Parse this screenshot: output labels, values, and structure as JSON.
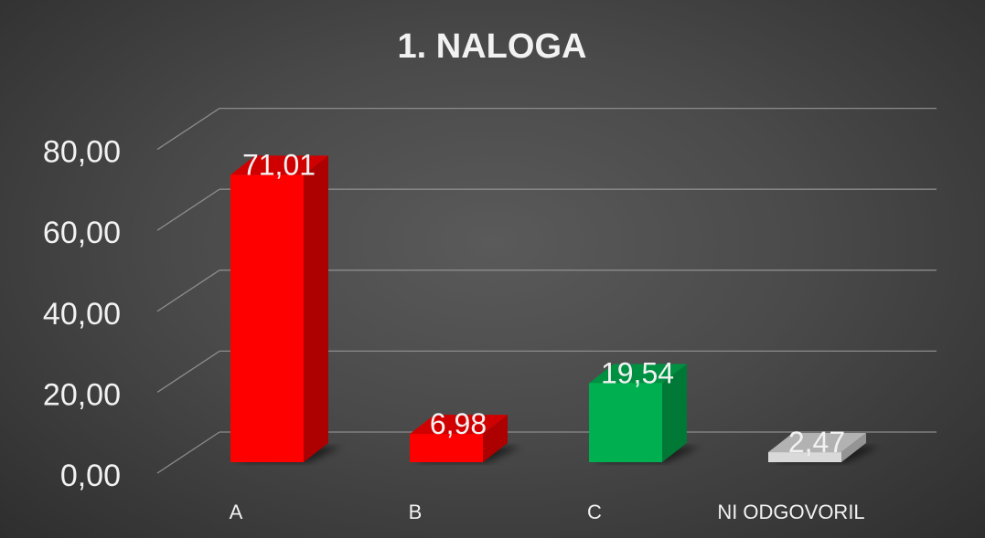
{
  "chart_data": {
    "type": "bar",
    "title": "1. NALOGA",
    "categories": [
      "A",
      "B",
      "C",
      "NI ODGOVORIL"
    ],
    "values": [
      71.01,
      6.98,
      19.54,
      2.47
    ],
    "value_labels": [
      "71,01",
      "6,98",
      "19,54",
      "2,47"
    ],
    "colors": [
      "#ff0000",
      "#ff0000",
      "#00b050",
      "#d9d9d9"
    ],
    "ylim": [
      0,
      80
    ],
    "y_ticks": [
      0,
      20,
      40,
      60,
      80
    ],
    "y_tick_labels": [
      "0,00",
      "20,00",
      "40,00",
      "60,00",
      "80,00"
    ],
    "xlabel": "",
    "ylabel": "",
    "grid": true,
    "style": "3d-column"
  }
}
